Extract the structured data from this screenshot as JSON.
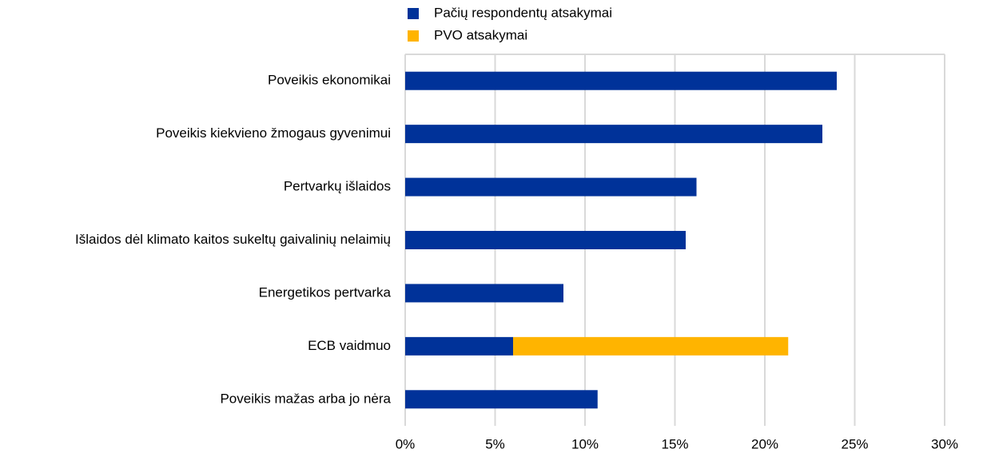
{
  "chart_data": {
    "type": "stacked-hbar",
    "categories": [
      "Poveikis ekonomikai",
      "Poveikis kiekvieno žmogaus gyvenimui",
      "Pertvarkų išlaidos",
      "Išlaidos dėl klimato kaitos sukeltų gaivalinių nelaimių",
      "Energetikos pertvarka",
      "ECB vaidmuo",
      "Poveikis mažas arba jo nėra"
    ],
    "series": [
      {
        "name": "Pačių respondentų  atsakymai",
        "color": "#003299",
        "values": [
          24.0,
          23.2,
          16.2,
          15.6,
          8.8,
          6.0,
          10.7
        ]
      },
      {
        "name": "PVO atsakymai",
        "color": "#ffb400",
        "values": [
          null,
          null,
          null,
          null,
          null,
          15.3,
          null
        ]
      }
    ],
    "xlim": [
      0,
      30
    ],
    "xticks": [
      {
        "value": 0,
        "label": "0%"
      },
      {
        "value": 5,
        "label": "5%"
      },
      {
        "value": 10,
        "label": "10%"
      },
      {
        "value": 15,
        "label": "15%"
      },
      {
        "value": 20,
        "label": "20%"
      },
      {
        "value": 25,
        "label": "25%"
      },
      {
        "value": 30,
        "label": "30%"
      }
    ],
    "grid": true
  }
}
